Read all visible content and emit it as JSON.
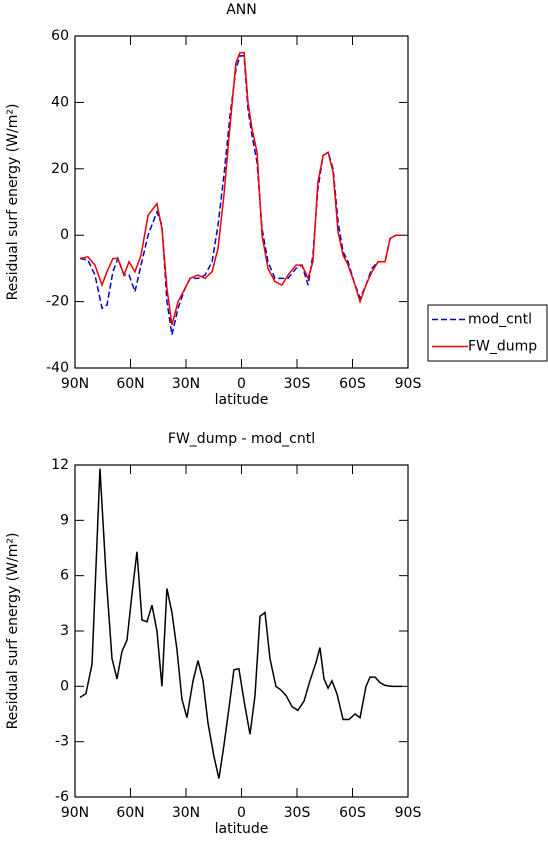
{
  "chart_data": [
    {
      "type": "line",
      "title": "ANN",
      "xlabel": "latitude",
      "ylabel": "Residual surf energy (W/m²)",
      "xlim": [
        90,
        -90
      ],
      "xticks": [
        {
          "value": 90,
          "label": "90N"
        },
        {
          "value": 60,
          "label": "60N"
        },
        {
          "value": 30,
          "label": "30N"
        },
        {
          "value": 0,
          "label": "0"
        },
        {
          "value": -30,
          "label": "30S"
        },
        {
          "value": -60,
          "label": "60S"
        },
        {
          "value": -90,
          "label": "90S"
        }
      ],
      "ylim": [
        -40,
        60
      ],
      "yticks": [
        -40,
        -20,
        0,
        20,
        40,
        60
      ],
      "legend": "outside-right",
      "x": [
        87.3,
        83.0,
        79.2,
        75.4,
        72.7,
        69.5,
        66.8,
        63.5,
        60.8,
        57.6,
        54.3,
        50.5,
        45.7,
        43.0,
        40.3,
        37.6,
        34.3,
        30.5,
        27.8,
        23.5,
        19.7,
        15.9,
        12.7,
        9.5,
        6.2,
        3.0,
        0.8,
        -1.4,
        -3.5,
        -5.7,
        -8.4,
        -11.1,
        -14.3,
        -18.1,
        -21.9,
        -25.1,
        -29.5,
        -32.7,
        -36.0,
        -38.6,
        -41.3,
        -44.1,
        -46.8,
        -49.5,
        -52.2,
        -54.9,
        -57.6,
        -60.8,
        -64.1,
        -67.3,
        -70.5,
        -73.8,
        -77.6,
        -80.3,
        -83.5,
        -86.8
      ],
      "series": [
        {
          "name": "mod_cntl",
          "color": "#0000cc",
          "linestyle": "dashed",
          "values": [
            -7,
            -7.5,
            -12,
            -22,
            -21,
            -11,
            -7,
            -12,
            -12,
            -17,
            -9,
            0,
            7,
            3,
            -20,
            -30,
            -22,
            -16,
            -13,
            -13,
            -12,
            -8,
            3,
            18,
            36,
            50,
            54,
            54,
            38,
            30,
            22,
            2,
            -8,
            -13,
            -13,
            -13,
            -10,
            -9,
            -15,
            -6,
            14,
            24,
            25,
            20,
            4,
            -5,
            -8,
            -14,
            -19,
            -15,
            -10,
            -8,
            -8,
            -1,
            0,
            0
          ]
        },
        {
          "name": "FW_dump",
          "color": "#ee0000",
          "linestyle": "solid",
          "values": [
            -7,
            -6.5,
            -9,
            -15,
            -11,
            -7,
            -7,
            -12,
            -8,
            -11,
            -6,
            6,
            9.5,
            2,
            -16,
            -27,
            -20,
            -16,
            -13,
            -12,
            -13,
            -11,
            -4,
            12,
            33,
            52,
            55,
            55,
            40,
            32,
            25,
            0,
            -10,
            -14,
            -15,
            -12,
            -9,
            -9,
            -13,
            -8,
            16,
            24,
            25,
            19,
            1,
            -6,
            -9,
            -14,
            -20,
            -15,
            -11,
            -8,
            -8,
            -1,
            0,
            0
          ]
        }
      ]
    },
    {
      "type": "line",
      "title": "FW_dump - mod_cntl",
      "xlabel": "latitude",
      "ylabel": "Residual surf energy (W/m²)",
      "xlim": [
        90,
        -90
      ],
      "xticks": [
        {
          "value": 90,
          "label": "90N"
        },
        {
          "value": 60,
          "label": "60N"
        },
        {
          "value": 30,
          "label": "30N"
        },
        {
          "value": 0,
          "label": "0"
        },
        {
          "value": -30,
          "label": "30S"
        },
        {
          "value": -60,
          "label": "60S"
        },
        {
          "value": -90,
          "label": "90S"
        }
      ],
      "ylim": [
        -6,
        12
      ],
      "yticks": [
        -6,
        -3,
        0,
        3,
        6,
        9,
        12
      ],
      "x": [
        87.3,
        84.1,
        80.8,
        76.5,
        73.2,
        70.0,
        67.3,
        64.6,
        61.9,
        59.2,
        56.5,
        53.8,
        51.1,
        48.4,
        45.7,
        43.0,
        40.3,
        37.6,
        34.9,
        32.2,
        29.5,
        26.2,
        23.5,
        20.8,
        18.1,
        14.9,
        12.2,
        9.5,
        6.8,
        4.1,
        1.4,
        -1.4,
        -4.6,
        -7.3,
        -10.0,
        -12.7,
        -15.4,
        -18.6,
        -21.3,
        -24.1,
        -27.3,
        -30.5,
        -33.8,
        -37.0,
        -40.3,
        -42.4,
        -44.6,
        -46.8,
        -48.9,
        -51.6,
        -54.9,
        -58.1,
        -61.4,
        -64.1,
        -67.3,
        -69.5,
        -72.2,
        -74.9,
        -77.6,
        -81.3,
        -86.8
      ],
      "series": [
        {
          "name": null,
          "color": "#000000",
          "linestyle": "solid",
          "values": [
            -0.6,
            -0.4,
            1.2,
            11.8,
            6,
            1.5,
            0.4,
            1.9,
            2.5,
            5,
            7.3,
            3.6,
            3.5,
            4.4,
            3,
            0,
            5.3,
            4,
            2,
            -0.7,
            -1.7,
            0.3,
            1.4,
            0.3,
            -2,
            -3.8,
            -5,
            -3.2,
            -1.2,
            0.9,
            0.95,
            -0.8,
            -2.6,
            -0.5,
            3.8,
            4,
            1.5,
            0,
            -0.2,
            -0.5,
            -1.1,
            -1.3,
            -0.8,
            0.3,
            1.3,
            2.1,
            0.4,
            -0.1,
            0.3,
            -0.4,
            -1.8,
            -1.8,
            -1.5,
            -1.7,
            0,
            0.5,
            0.5,
            0.2,
            0.05,
            0,
            0
          ]
        }
      ]
    }
  ]
}
